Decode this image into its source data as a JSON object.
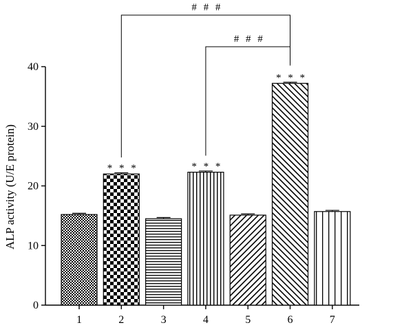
{
  "chart_data": {
    "type": "bar",
    "categories": [
      "1",
      "2",
      "3",
      "4",
      "5",
      "6",
      "7"
    ],
    "values": [
      15.2,
      22.0,
      14.5,
      22.3,
      15.1,
      37.2,
      15.7
    ],
    "errors": [
      0.2,
      0.2,
      0.2,
      0.2,
      0.2,
      0.2,
      0.2
    ],
    "patterns": [
      "crosshatch",
      "checker",
      "horizontal",
      "vertical",
      "diagonal-up",
      "diagonal-down",
      "vertical-wide"
    ],
    "ylabel": "ALP activity (U/E protein)",
    "xlabel": "",
    "title": "",
    "ylim": [
      0,
      40
    ],
    "yticks": [
      0,
      10,
      20,
      30,
      40
    ],
    "grid": false,
    "bar_annotations": [
      {
        "category": "2",
        "text": "* * *"
      },
      {
        "category": "4",
        "text": "* * *"
      },
      {
        "category": "6",
        "text": "* * *"
      }
    ],
    "brackets": [
      {
        "from": "2",
        "to": "6",
        "text": "# # #",
        "level": 2
      },
      {
        "from": "4",
        "to": "6",
        "text": "# # #",
        "level": 1
      }
    ]
  }
}
